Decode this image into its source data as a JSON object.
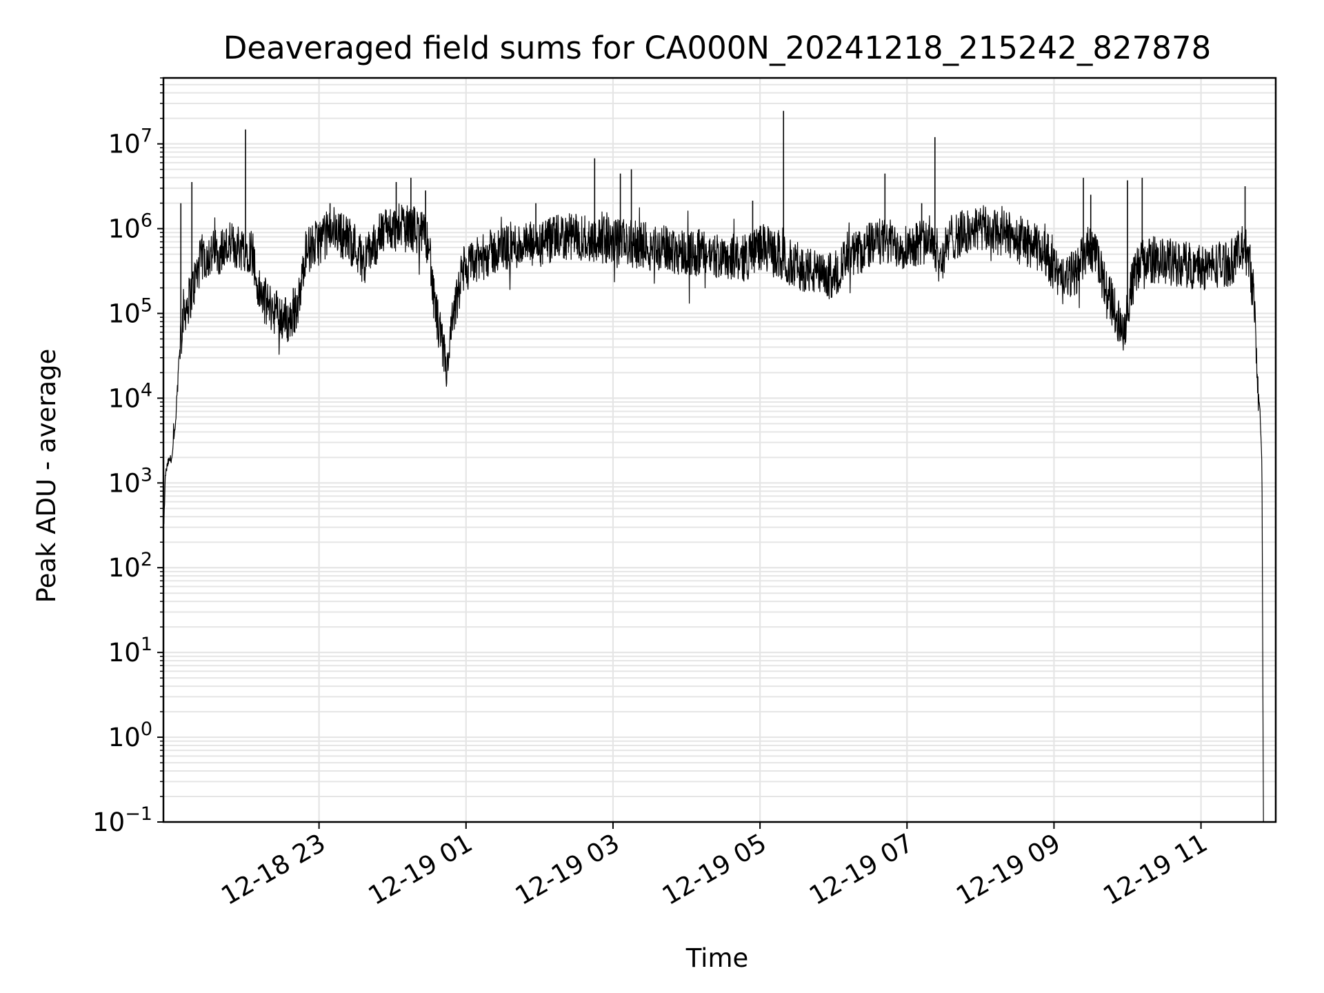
{
  "chart_data": {
    "type": "line",
    "title": "Deaveraged field sums for CA000N_20241218_215242_827878",
    "xlabel": "Time",
    "ylabel": "Peak ADU - average",
    "yscale": "log",
    "ylim": [
      0.1,
      60000000
    ],
    "xlim": [
      "2024-12-18 21:53",
      "2024-12-19 12:01"
    ],
    "grid": true,
    "line_color": "#000000",
    "grid_color": "#e5e5e5",
    "x_ticks": [
      {
        "t": 1.0,
        "label": "12-18 23"
      },
      {
        "t": 3.0,
        "label": "12-19 01"
      },
      {
        "t": 5.0,
        "label": "12-19 03"
      },
      {
        "t": 7.0,
        "label": "12-19 05"
      },
      {
        "t": 9.0,
        "label": "12-19 07"
      },
      {
        "t": 11.0,
        "label": "12-19 09"
      },
      {
        "t": 13.0,
        "label": "12-19 11"
      }
    ],
    "y_ticks": [
      {
        "exp": -1,
        "base": "10",
        "sup": "−1"
      },
      {
        "exp": 0,
        "base": "10",
        "sup": "0"
      },
      {
        "exp": 1,
        "base": "10",
        "sup": "1"
      },
      {
        "exp": 2,
        "base": "10",
        "sup": "2"
      },
      {
        "exp": 3,
        "base": "10",
        "sup": "3"
      },
      {
        "exp": 4,
        "base": "10",
        "sup": "4"
      },
      {
        "exp": 5,
        "base": "10",
        "sup": "5"
      },
      {
        "exp": 6,
        "base": "10",
        "sup": "6"
      },
      {
        "exp": 7,
        "base": "10",
        "sup": "7"
      }
    ],
    "x_units": "hours after 2024-12-18 22:00",
    "series": [
      {
        "name": "deaveraged field sum",
        "anchors_hours_log10": [
          [
            -1.11,
            2.5
          ],
          [
            -1.09,
            3.1
          ],
          [
            -1.05,
            3.25
          ],
          [
            -1.0,
            3.3
          ],
          [
            -0.95,
            3.7
          ],
          [
            -0.9,
            4.6
          ],
          [
            -0.85,
            5.0
          ],
          [
            -0.75,
            5.2
          ],
          [
            -0.6,
            5.65
          ],
          [
            -0.2,
            5.8
          ],
          [
            0.1,
            5.75
          ],
          [
            0.15,
            5.3
          ],
          [
            0.3,
            5.1
          ],
          [
            0.6,
            4.9
          ],
          [
            0.75,
            5.2
          ],
          [
            0.8,
            5.7
          ],
          [
            1.2,
            6.0
          ],
          [
            1.5,
            5.8
          ],
          [
            1.6,
            5.6
          ],
          [
            1.7,
            5.75
          ],
          [
            1.9,
            6.0
          ],
          [
            2.3,
            6.0
          ],
          [
            2.5,
            5.85
          ],
          [
            2.55,
            5.2
          ],
          [
            2.7,
            4.5
          ],
          [
            2.75,
            4.3
          ],
          [
            2.8,
            4.8
          ],
          [
            2.95,
            5.5
          ],
          [
            3.3,
            5.7
          ],
          [
            3.6,
            5.8
          ],
          [
            4.0,
            5.8
          ],
          [
            4.3,
            5.9
          ],
          [
            4.6,
            5.9
          ],
          [
            5.0,
            5.85
          ],
          [
            5.4,
            5.8
          ],
          [
            5.8,
            5.75
          ],
          [
            6.2,
            5.7
          ],
          [
            6.8,
            5.65
          ],
          [
            7.0,
            5.8
          ],
          [
            7.4,
            5.6
          ],
          [
            7.7,
            5.5
          ],
          [
            7.9,
            5.4
          ],
          [
            8.3,
            5.7
          ],
          [
            8.6,
            5.85
          ],
          [
            9.0,
            5.8
          ],
          [
            9.35,
            5.9
          ],
          [
            9.45,
            5.6
          ],
          [
            9.6,
            5.9
          ],
          [
            10.0,
            6.0
          ],
          [
            10.5,
            5.9
          ],
          [
            10.9,
            5.7
          ],
          [
            11.1,
            5.35
          ],
          [
            11.3,
            5.5
          ],
          [
            11.5,
            5.8
          ],
          [
            11.8,
            5.1
          ],
          [
            11.95,
            4.8
          ],
          [
            12.05,
            5.3
          ],
          [
            12.2,
            5.65
          ],
          [
            12.6,
            5.6
          ],
          [
            13.0,
            5.55
          ],
          [
            13.4,
            5.6
          ],
          [
            13.55,
            5.75
          ],
          [
            13.65,
            5.7
          ],
          [
            13.72,
            5.2
          ],
          [
            13.75,
            4.6
          ],
          [
            13.78,
            4.05
          ],
          [
            13.8,
            3.9
          ],
          [
            13.83,
            3.2
          ],
          [
            13.85,
            -1.1
          ]
        ],
        "spikes": [
          {
            "t": -0.73,
            "log10": 6.55
          },
          {
            "t": -0.88,
            "log10": 6.3
          },
          {
            "t": 0.0,
            "log10": 7.17
          },
          {
            "t": 0.65,
            "log10": 5.3
          },
          {
            "t": 1.15,
            "log10": 6.3
          },
          {
            "t": 2.05,
            "log10": 6.55
          },
          {
            "t": 2.25,
            "log10": 6.6
          },
          {
            "t": 2.45,
            "log10": 6.45
          },
          {
            "t": 3.95,
            "log10": 6.3
          },
          {
            "t": 4.75,
            "log10": 6.83
          },
          {
            "t": 5.1,
            "log10": 6.65
          },
          {
            "t": 5.25,
            "log10": 6.7
          },
          {
            "t": 6.9,
            "log10": 6.33
          },
          {
            "t": 7.32,
            "log10": 7.39
          },
          {
            "t": 8.7,
            "log10": 6.65
          },
          {
            "t": 9.2,
            "log10": 6.3
          },
          {
            "t": 9.38,
            "log10": 7.08
          },
          {
            "t": 11.4,
            "log10": 6.6
          },
          {
            "t": 11.5,
            "log10": 6.4
          },
          {
            "t": 12.0,
            "log10": 6.57
          },
          {
            "t": 12.2,
            "log10": 6.6
          },
          {
            "t": 13.6,
            "log10": 6.5
          }
        ]
      }
    ]
  }
}
